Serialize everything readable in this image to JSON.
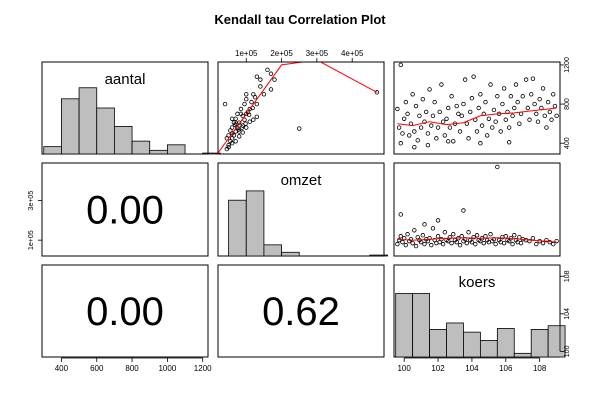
{
  "chart_data": {
    "type": "scatter-matrix",
    "title": "Kendall tau Correlation Plot",
    "variables": [
      "aantal",
      "omzet",
      "koers"
    ],
    "ticks": {
      "aantal": [
        "400",
        "600",
        "800",
        "1000",
        "1200"
      ],
      "omzet": [
        "1e+05",
        "2e+05",
        "3e+05",
        "4e+05"
      ],
      "omzet_left": [
        "1e+05",
        "3e+05"
      ],
      "koers": [
        "100",
        "102",
        "104",
        "106",
        "108"
      ],
      "koers_right": [
        "100",
        "104",
        "108"
      ],
      "aantal_right": [
        "400",
        "800",
        "1200"
      ]
    },
    "correlations": [
      {
        "row": 2,
        "col": 1,
        "label": "0.00"
      },
      {
        "row": 3,
        "col": 1,
        "label": "0.00"
      },
      {
        "row": 3,
        "col": 2,
        "label": "0.62"
      }
    ],
    "histograms": {
      "aantal": {
        "xlim": [
          290,
          1230
        ],
        "bins": [
          [
            300,
            400,
            0.08
          ],
          [
            400,
            500,
            0.6
          ],
          [
            500,
            600,
            0.72
          ],
          [
            600,
            700,
            0.5
          ],
          [
            700,
            800,
            0.3
          ],
          [
            800,
            900,
            0.14
          ],
          [
            900,
            1000,
            0.04
          ],
          [
            1000,
            1100,
            0.1
          ],
          [
            1100,
            1200,
            0.0
          ],
          [
            1200,
            1300,
            0.01
          ]
        ]
      },
      "omzet": {
        "xlim": [
          20000,
          490000
        ],
        "bins": [
          [
            50000,
            100000,
            0.6
          ],
          [
            100000,
            150000,
            0.7
          ],
          [
            150000,
            200000,
            0.12
          ],
          [
            200000,
            250000,
            0.04
          ],
          [
            250000,
            300000,
            0.0
          ],
          [
            450000,
            500000,
            0.01
          ]
        ]
      },
      "koers": {
        "xlim": [
          99.4,
          109.2
        ],
        "bins": [
          [
            99.5,
            100.5,
            0.69
          ],
          [
            100.5,
            101.5,
            0.69
          ],
          [
            101.5,
            102.5,
            0.3
          ],
          [
            102.5,
            103.5,
            0.37
          ],
          [
            103.5,
            104.5,
            0.27
          ],
          [
            104.5,
            105.5,
            0.18
          ],
          [
            105.5,
            106.5,
            0.31
          ],
          [
            106.5,
            107.5,
            0.04
          ],
          [
            107.5,
            108.5,
            0.3
          ],
          [
            108.5,
            109.5,
            0.34
          ]
        ]
      }
    },
    "scatter_omzet_aantal": {
      "x_var": "omzet",
      "y_var": "aantal",
      "xlim": [
        20000,
        490000
      ],
      "ylim": [
        290,
        1230
      ],
      "points": [
        [
          45000,
          340
        ],
        [
          50000,
          380
        ],
        [
          55000,
          420
        ],
        [
          60000,
          450
        ],
        [
          60000,
          500
        ],
        [
          65000,
          480
        ],
        [
          70000,
          520
        ],
        [
          72000,
          600
        ],
        [
          75000,
          560
        ],
        [
          80000,
          610
        ],
        [
          85000,
          700
        ],
        [
          90000,
          680
        ],
        [
          95000,
          640
        ],
        [
          100000,
          700
        ],
        [
          105000,
          720
        ],
        [
          110000,
          750
        ],
        [
          60000,
          560
        ],
        [
          70000,
          650
        ],
        [
          80000,
          520
        ],
        [
          90000,
          580
        ],
        [
          95000,
          800
        ],
        [
          100000,
          850
        ],
        [
          110000,
          620
        ],
        [
          120000,
          900
        ],
        [
          130000,
          1080
        ],
        [
          140000,
          1050
        ],
        [
          160000,
          1150
        ],
        [
          170000,
          1110
        ],
        [
          180000,
          1050
        ],
        [
          130000,
          800
        ],
        [
          140000,
          980
        ],
        [
          100000,
          900
        ],
        [
          115000,
          820
        ],
        [
          125000,
          870
        ],
        [
          85000,
          750
        ],
        [
          75000,
          700
        ],
        [
          65000,
          610
        ],
        [
          55000,
          530
        ],
        [
          50000,
          480
        ],
        [
          45000,
          450
        ],
        [
          60000,
          650
        ],
        [
          68000,
          590
        ],
        [
          78000,
          540
        ],
        [
          88000,
          560
        ],
        [
          98000,
          600
        ],
        [
          108000,
          690
        ],
        [
          118000,
          760
        ],
        [
          150000,
          900
        ],
        [
          170000,
          950
        ],
        [
          250000,
          550
        ],
        [
          470000,
          920
        ],
        [
          40000,
          800
        ],
        [
          70000,
          420
        ],
        [
          80000,
          470
        ],
        [
          90000,
          510
        ],
        [
          100000,
          560
        ],
        [
          60000,
          400
        ],
        [
          50000,
          360
        ],
        [
          120000,
          640
        ],
        [
          130000,
          670
        ]
      ],
      "fit": [
        [
          20000,
          300
        ],
        [
          100000,
          700
        ],
        [
          200000,
          1200
        ],
        [
          300000,
          1250
        ],
        [
          470000,
          920
        ]
      ]
    },
    "scatter_koers_aantal": {
      "x_var": "koers",
      "y_var": "aantal",
      "xlim": [
        99.4,
        109.2
      ],
      "ylim": [
        290,
        1230
      ],
      "points": [
        [
          99.6,
          750
        ],
        [
          99.7,
          560
        ],
        [
          99.8,
          1200
        ],
        [
          99.9,
          500
        ],
        [
          100.0,
          650
        ],
        [
          100.1,
          820
        ],
        [
          100.2,
          700
        ],
        [
          100.3,
          480
        ],
        [
          100.4,
          600
        ],
        [
          100.5,
          900
        ],
        [
          100.6,
          520
        ],
        [
          100.7,
          780
        ],
        [
          100.8,
          430
        ],
        [
          100.9,
          680
        ],
        [
          101.0,
          560
        ],
        [
          101.1,
          850
        ],
        [
          101.2,
          620
        ],
        [
          101.3,
          720
        ],
        [
          101.4,
          500
        ],
        [
          101.5,
          950
        ],
        [
          101.6,
          580
        ],
        [
          101.7,
          680
        ],
        [
          101.8,
          820
        ],
        [
          101.9,
          450
        ],
        [
          102.0,
          560
        ],
        [
          102.1,
          720
        ],
        [
          102.2,
          1000
        ],
        [
          102.3,
          620
        ],
        [
          102.4,
          480
        ],
        [
          102.5,
          650
        ],
        [
          102.6,
          760
        ],
        [
          102.7,
          560
        ],
        [
          102.8,
          880
        ],
        [
          102.9,
          420
        ],
        [
          103.0,
          600
        ],
        [
          103.1,
          780
        ],
        [
          103.2,
          700
        ],
        [
          103.3,
          520
        ],
        [
          103.4,
          680
        ],
        [
          103.5,
          800
        ],
        [
          103.6,
          1050
        ],
        [
          103.7,
          600
        ],
        [
          103.8,
          450
        ],
        [
          103.9,
          720
        ],
        [
          104.0,
          860
        ],
        [
          104.1,
          1080
        ],
        [
          104.2,
          640
        ],
        [
          104.3,
          520
        ],
        [
          104.4,
          760
        ],
        [
          104.5,
          900
        ],
        [
          104.6,
          580
        ],
        [
          104.7,
          700
        ],
        [
          104.8,
          820
        ],
        [
          104.9,
          480
        ],
        [
          105.0,
          650
        ],
        [
          105.1,
          1000
        ],
        [
          105.2,
          560
        ],
        [
          105.3,
          740
        ],
        [
          105.4,
          620
        ],
        [
          105.5,
          880
        ],
        [
          105.6,
          700
        ],
        [
          105.7,
          520
        ],
        [
          105.8,
          800
        ],
        [
          105.9,
          960
        ],
        [
          106.0,
          640
        ],
        [
          106.1,
          720
        ],
        [
          106.2,
          560
        ],
        [
          106.3,
          880
        ],
        [
          106.4,
          680
        ],
        [
          106.5,
          760
        ],
        [
          106.6,
          1000
        ],
        [
          106.7,
          820
        ],
        [
          106.8,
          600
        ],
        [
          106.9,
          700
        ],
        [
          107.0,
          880
        ],
        [
          107.2,
          1050
        ],
        [
          107.3,
          760
        ],
        [
          107.4,
          640
        ],
        [
          107.5,
          900
        ],
        [
          107.6,
          1060
        ],
        [
          107.7,
          800
        ],
        [
          107.8,
          700
        ],
        [
          107.9,
          620
        ],
        [
          108.0,
          850
        ],
        [
          108.1,
          760
        ],
        [
          108.2,
          960
        ],
        [
          108.3,
          680
        ],
        [
          108.4,
          560
        ],
        [
          108.5,
          820
        ],
        [
          108.6,
          720
        ],
        [
          108.7,
          640
        ],
        [
          108.8,
          900
        ],
        [
          108.9,
          780
        ],
        [
          109.0,
          680
        ],
        [
          99.8,
          400
        ],
        [
          100.6,
          360
        ],
        [
          101.4,
          380
        ],
        [
          102.6,
          420
        ],
        [
          104.5,
          400
        ],
        [
          106.2,
          410
        ]
      ],
      "fit": [
        [
          99.6,
          600
        ],
        [
          100.5,
          580
        ],
        [
          101.5,
          620
        ],
        [
          102.5,
          590
        ],
        [
          103.5,
          610
        ],
        [
          104.5,
          680
        ],
        [
          105.5,
          700
        ],
        [
          106.5,
          710
        ],
        [
          107.5,
          730
        ],
        [
          108.5,
          750
        ],
        [
          109.0,
          760
        ]
      ]
    },
    "scatter_koers_omzet": {
      "x_var": "koers",
      "y_var": "omzet",
      "xlim": [
        99.4,
        109.2
      ],
      "ylim": [
        20000,
        490000
      ],
      "points": [
        [
          99.6,
          80000
        ],
        [
          99.7,
          100000
        ],
        [
          99.8,
          120000
        ],
        [
          99.9,
          90000
        ],
        [
          100.0,
          110000
        ],
        [
          100.1,
          75000
        ],
        [
          100.2,
          130000
        ],
        [
          100.3,
          95000
        ],
        [
          100.4,
          105000
        ],
        [
          100.5,
          85000
        ],
        [
          100.6,
          150000
        ],
        [
          100.7,
          70000
        ],
        [
          100.8,
          115000
        ],
        [
          100.9,
          100000
        ],
        [
          101.0,
          90000
        ],
        [
          101.1,
          125000
        ],
        [
          101.2,
          80000
        ],
        [
          101.3,
          105000
        ],
        [
          101.4,
          95000
        ],
        [
          101.5,
          110000
        ],
        [
          101.6,
          75000
        ],
        [
          101.7,
          160000
        ],
        [
          101.8,
          100000
        ],
        [
          101.9,
          85000
        ],
        [
          102.0,
          120000
        ],
        [
          102.1,
          90000
        ],
        [
          102.2,
          105000
        ],
        [
          102.3,
          80000
        ],
        [
          102.4,
          140000
        ],
        [
          102.5,
          100000
        ],
        [
          102.6,
          95000
        ],
        [
          102.7,
          115000
        ],
        [
          102.8,
          85000
        ],
        [
          102.9,
          130000
        ],
        [
          103.0,
          100000
        ],
        [
          103.1,
          90000
        ],
        [
          103.2,
          110000
        ],
        [
          103.3,
          75000
        ],
        [
          103.4,
          120000
        ],
        [
          103.5,
          95000
        ],
        [
          103.6,
          105000
        ],
        [
          103.7,
          85000
        ],
        [
          103.8,
          140000
        ],
        [
          103.9,
          100000
        ],
        [
          104.0,
          90000
        ],
        [
          104.1,
          115000
        ],
        [
          104.2,
          80000
        ],
        [
          104.3,
          125000
        ],
        [
          104.4,
          100000
        ],
        [
          104.5,
          95000
        ],
        [
          104.6,
          110000
        ],
        [
          104.7,
          85000
        ],
        [
          104.8,
          120000
        ],
        [
          104.9,
          100000
        ],
        [
          105.0,
          90000
        ],
        [
          105.1,
          130000
        ],
        [
          105.2,
          95000
        ],
        [
          105.3,
          105000
        ],
        [
          105.4,
          80000
        ],
        [
          105.5,
          470000
        ],
        [
          105.6,
          100000
        ],
        [
          105.7,
          90000
        ],
        [
          105.8,
          115000
        ],
        [
          105.9,
          85000
        ],
        [
          106.0,
          120000
        ],
        [
          106.1,
          100000
        ],
        [
          106.2,
          95000
        ],
        [
          106.3,
          110000
        ],
        [
          106.4,
          80000
        ],
        [
          106.5,
          125000
        ],
        [
          106.6,
          100000
        ],
        [
          106.7,
          90000
        ],
        [
          106.8,
          115000
        ],
        [
          106.9,
          85000
        ],
        [
          107.0,
          105000
        ],
        [
          107.2,
          100000
        ],
        [
          107.4,
          95000
        ],
        [
          107.6,
          110000
        ],
        [
          107.8,
          80000
        ],
        [
          108.0,
          95000
        ],
        [
          108.2,
          85000
        ],
        [
          108.4,
          100000
        ],
        [
          108.6,
          90000
        ],
        [
          108.8,
          80000
        ],
        [
          109.0,
          95000
        ],
        [
          103.5,
          250000
        ],
        [
          102.0,
          200000
        ],
        [
          99.8,
          230000
        ],
        [
          101.2,
          180000
        ]
      ],
      "fit": [
        [
          99.6,
          105000
        ],
        [
          100.5,
          100000
        ],
        [
          101.5,
          105000
        ],
        [
          102.5,
          110000
        ],
        [
          103.5,
          112000
        ],
        [
          104.5,
          110000
        ],
        [
          105.5,
          112000
        ],
        [
          106.5,
          108000
        ],
        [
          107.5,
          100000
        ],
        [
          108.5,
          95000
        ],
        [
          109.0,
          90000
        ]
      ]
    },
    "colors": {
      "hist_fill": "#bebebe",
      "fit_line": "#ff0000",
      "points": "#000000"
    }
  }
}
